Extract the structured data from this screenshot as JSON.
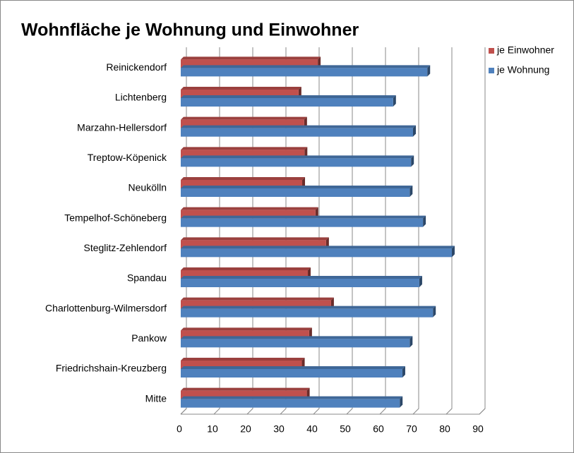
{
  "chart_data": {
    "type": "bar",
    "orientation": "horizontal",
    "title": "Wohnfläche je Wohnung und Einwohner",
    "categories": [
      "Mitte",
      "Friedrichshain-Kreuzberg",
      "Pankow",
      "Charlottenburg-Wilmersdorf",
      "Spandau",
      "Steglitz-Zehlendorf",
      "Tempelhof-Schöneberg",
      "Neukölln",
      "Treptow-Köpenick",
      "Marzahn-Hellersdorf",
      "Lichtenberg",
      "Reinickendorf"
    ],
    "series": [
      {
        "name": "je Einwohner",
        "color": "#c0504d",
        "values": [
          38,
          36.5,
          38.7,
          45.3,
          38.3,
          43.8,
          40.6,
          36.6,
          37.3,
          37.2,
          35.5,
          41.3
        ]
      },
      {
        "name": "je Wohnung",
        "color": "#4f81bd",
        "values": [
          66,
          66.8,
          69,
          76,
          71.9,
          81.7,
          73,
          69,
          69.4,
          70,
          64,
          74.3
        ]
      }
    ],
    "xlim": [
      0,
      90
    ],
    "xticks": [
      0,
      10,
      20,
      30,
      40,
      50,
      60,
      70,
      80,
      90
    ],
    "grid": true,
    "legend": "right"
  }
}
